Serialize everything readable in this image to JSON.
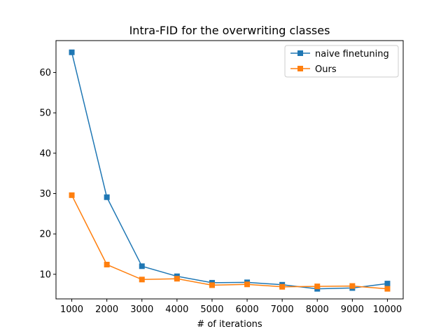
{
  "chart_data": {
    "type": "line",
    "title": "Intra-FID for the overwriting classes",
    "xlabel": "# of iterations",
    "ylabel": "",
    "x": [
      1000,
      2000,
      3000,
      4000,
      5000,
      6000,
      7000,
      8000,
      9000,
      10000
    ],
    "xticks": [
      "1000",
      "2000",
      "3000",
      "4000",
      "5000",
      "6000",
      "7000",
      "8000",
      "9000",
      "10000"
    ],
    "yticks": [
      10,
      20,
      30,
      40,
      50,
      60
    ],
    "xlim": [
      550,
      10450
    ],
    "ylim": [
      3.9,
      67.9
    ],
    "grid": false,
    "legend_position": "top-right",
    "series": [
      {
        "name": "naive finetuning",
        "color": "#1f77b4",
        "marker": "square",
        "values": [
          65.0,
          29.1,
          12.0,
          9.5,
          7.9,
          8.0,
          7.4,
          6.4,
          6.6,
          7.7
        ]
      },
      {
        "name": "Ours",
        "color": "#ff7f0e",
        "marker": "square",
        "values": [
          29.6,
          12.4,
          8.7,
          8.9,
          7.3,
          7.5,
          6.9,
          7.0,
          7.1,
          6.4
        ]
      }
    ]
  }
}
